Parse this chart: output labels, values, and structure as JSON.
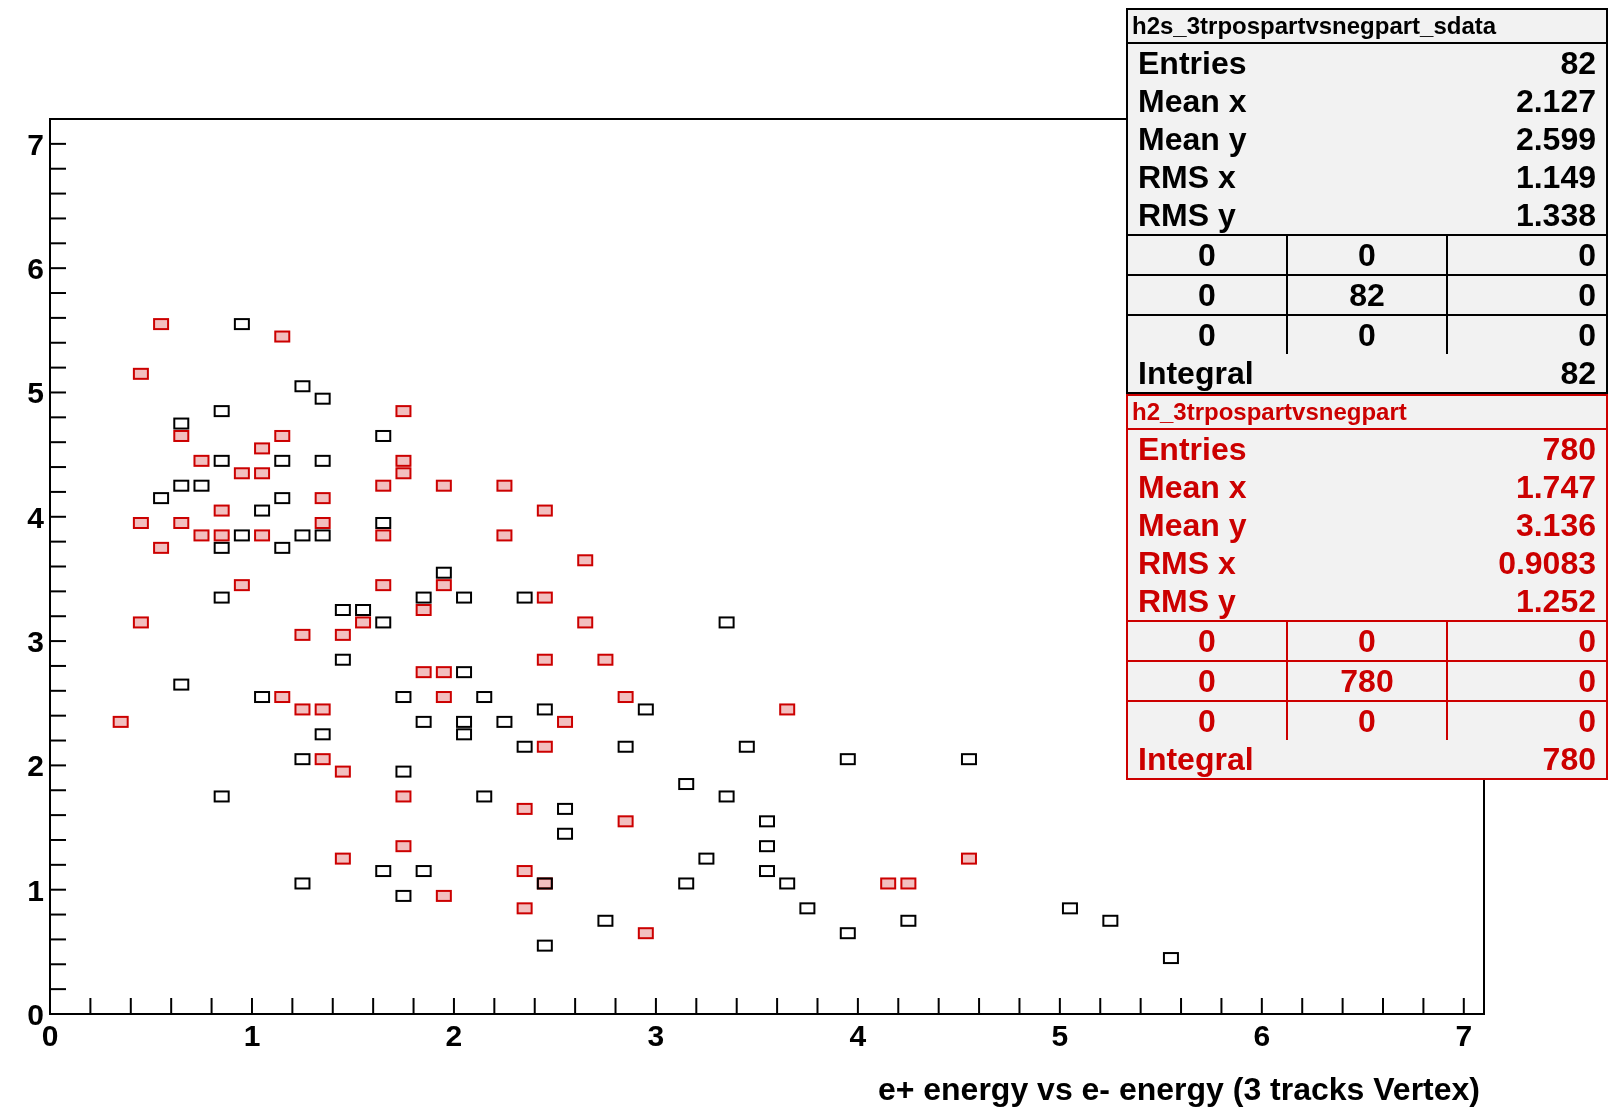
{
  "chart_data": {
    "type": "scatter",
    "xlabel": "e+ energy vs e- energy (3 tracks Vertex)",
    "marker": "square",
    "legend": "top right",
    "xlim": [
      0,
      7.1
    ],
    "ylim": [
      0,
      7.2
    ],
    "xticks": [
      0,
      {
        "value": 0.2,
        "label": null
      },
      {
        "value": 0.4,
        "label": null
      },
      {
        "value": 0.6,
        "label": null
      },
      {
        "value": 0.8,
        "label": null
      },
      1,
      {
        "value": 1.2,
        "label": null
      },
      {
        "value": 1.4,
        "label": null
      },
      {
        "value": 1.6,
        "label": null
      },
      {
        "value": 1.8,
        "label": null
      },
      2,
      {
        "value": 2.2,
        "label": null
      },
      {
        "value": 2.4,
        "label": null
      },
      {
        "value": 2.6,
        "label": null
      },
      {
        "value": 2.8,
        "label": null
      },
      3,
      {
        "value": 3.2,
        "label": null
      },
      {
        "value": 3.4,
        "label": null
      },
      {
        "value": 3.6,
        "label": null
      },
      {
        "value": 3.8,
        "label": null
      },
      4,
      {
        "value": 4.2,
        "label": null
      },
      {
        "value": 4.4,
        "label": null
      },
      {
        "value": 4.6,
        "label": null
      },
      {
        "value": 4.8,
        "label": null
      },
      5,
      {
        "value": 5.2,
        "label": null
      },
      {
        "value": 5.4,
        "label": null
      },
      {
        "value": 5.6,
        "label": null
      },
      {
        "value": 5.8,
        "label": null
      },
      6,
      {
        "value": 6.2,
        "label": null
      },
      {
        "value": 6.4,
        "label": null
      },
      {
        "value": 6.6,
        "label": null
      },
      {
        "value": 6.8,
        "label": null
      },
      7
    ],
    "yticks": [
      0,
      {
        "value": 0.2,
        "label": null
      },
      {
        "value": 0.4,
        "label": null
      },
      {
        "value": 0.6,
        "label": null
      },
      {
        "value": 0.8,
        "label": null
      },
      1,
      {
        "value": 1.2,
        "label": null
      },
      {
        "value": 1.4,
        "label": null
      },
      {
        "value": 1.6,
        "label": null
      },
      {
        "value": 1.8,
        "label": null
      },
      2,
      {
        "value": 2.2,
        "label": null
      },
      {
        "value": 2.4,
        "label": null
      },
      {
        "value": 2.6,
        "label": null
      },
      {
        "value": 2.8,
        "label": null
      },
      3,
      {
        "value": 3.2,
        "label": null
      },
      {
        "value": 3.4,
        "label": null
      },
      {
        "value": 3.6,
        "label": null
      },
      {
        "value": 3.8,
        "label": null
      },
      4,
      {
        "value": 4.2,
        "label": null
      },
      {
        "value": 4.4,
        "label": null
      },
      {
        "value": 4.6,
        "label": null
      },
      {
        "value": 4.8,
        "label": null
      },
      5,
      {
        "value": 5.2,
        "label": null
      },
      {
        "value": 5.4,
        "label": null
      },
      {
        "value": 5.6,
        "label": null
      },
      {
        "value": 5.8,
        "label": null
      },
      6,
      {
        "value": 6.2,
        "label": null
      },
      {
        "value": 6.4,
        "label": null
      },
      {
        "value": 6.6,
        "label": null
      },
      {
        "value": 6.8,
        "label": null
      },
      7
    ],
    "series": [
      {
        "name": "h2s_3trpospartvsnegpart_sdata",
        "color": "#000000",
        "x": [
          0.95,
          1.25,
          1.35,
          0.85,
          0.65,
          1.65,
          0.85,
          1.15,
          1.35,
          0.65,
          0.75,
          0.55,
          1.15,
          1.05,
          1.65,
          0.95,
          1.25,
          1.35,
          1.15,
          0.85,
          1.95,
          0.85,
          1.85,
          2.05,
          2.35,
          1.45,
          1.55,
          1.65,
          3.35,
          1.45,
          2.05,
          0.65,
          1.05,
          1.75,
          2.15,
          2.45,
          2.95,
          1.85,
          2.05,
          2.25,
          1.35,
          2.05,
          2.35,
          2.85,
          3.45,
          1.25,
          3.95,
          4.55,
          1.75,
          3.15,
          0.85,
          2.15,
          3.35,
          2.55,
          3.55,
          2.55,
          3.55,
          3.25,
          1.65,
          1.85,
          3.55,
          1.25,
          2.45,
          3.15,
          3.65,
          1.75,
          3.75,
          5.05,
          2.75,
          4.25,
          5.25,
          3.95,
          2.45,
          5.55
        ],
        "values": [
          5.55,
          5.05,
          4.95,
          4.85,
          4.75,
          4.65,
          4.45,
          4.45,
          4.45,
          4.25,
          4.25,
          4.15,
          4.15,
          4.05,
          3.95,
          3.85,
          3.85,
          3.85,
          3.75,
          3.75,
          3.55,
          3.35,
          3.35,
          3.35,
          3.35,
          3.25,
          3.25,
          3.15,
          3.15,
          2.85,
          2.75,
          2.65,
          2.55,
          2.55,
          2.55,
          2.45,
          2.45,
          2.35,
          2.35,
          2.35,
          2.25,
          2.25,
          2.15,
          2.15,
          2.15,
          2.05,
          2.05,
          2.05,
          1.95,
          1.85,
          1.75,
          1.75,
          1.75,
          1.65,
          1.55,
          1.45,
          1.35,
          1.25,
          1.15,
          1.15,
          1.15,
          1.05,
          1.05,
          1.05,
          1.05,
          0.95,
          0.85,
          0.85,
          0.75,
          0.75,
          0.75,
          0.65,
          0.55,
          0.45
        ]
      },
      {
        "name": "h2_3trpospartvsnegpart",
        "color": "#cc0000",
        "x": [
          0.55,
          1.15,
          0.45,
          1.75,
          1.15,
          0.65,
          0.75,
          1.05,
          1.05,
          0.95,
          1.75,
          1.75,
          1.65,
          1.95,
          2.25,
          1.35,
          0.85,
          2.45,
          0.45,
          0.65,
          1.35,
          0.75,
          0.85,
          1.05,
          1.65,
          2.25,
          0.55,
          2.65,
          0.95,
          1.65,
          1.95,
          1.85,
          2.45,
          0.45,
          1.55,
          2.65,
          1.25,
          1.45,
          2.45,
          2.75,
          1.85,
          1.95,
          1.15,
          1.95,
          2.85,
          3.65,
          1.25,
          1.35,
          0.35,
          2.55,
          2.45,
          1.35,
          1.45,
          1.75,
          2.35,
          2.85,
          1.75,
          1.45,
          4.55,
          2.35,
          2.45,
          4.15,
          4.25,
          1.95,
          2.35,
          2.95
        ],
        "values": [
          5.55,
          5.45,
          5.15,
          4.85,
          4.65,
          4.65,
          4.45,
          4.55,
          4.35,
          4.35,
          4.45,
          4.35,
          4.25,
          4.25,
          4.25,
          4.15,
          4.05,
          4.05,
          3.95,
          3.95,
          3.95,
          3.85,
          3.85,
          3.85,
          3.85,
          3.85,
          3.75,
          3.65,
          3.45,
          3.45,
          3.45,
          3.25,
          3.35,
          3.15,
          3.15,
          3.15,
          3.05,
          3.05,
          2.85,
          2.85,
          2.75,
          2.75,
          2.55,
          2.55,
          2.55,
          2.45,
          2.45,
          2.45,
          2.35,
          2.35,
          2.15,
          2.05,
          1.95,
          1.75,
          1.65,
          1.55,
          1.35,
          1.25,
          1.25,
          1.15,
          1.05,
          1.05,
          1.05,
          0.95,
          0.85,
          0.65
        ]
      }
    ],
    "annotations": [
      "Entries 82",
      "Mean x 2.127",
      "Mean y 2.599",
      "RMS x 1.149",
      "RMS y 1.338",
      "0 0 0",
      "0 82 0",
      "0 0 0",
      "Integral 82",
      "Entries 780",
      "Mean x 1.747",
      "Mean y 3.136",
      "RMS x 0.9083",
      "RMS y 1.252",
      "0 0 0",
      "0 780 0",
      "0 0 0",
      "Integral 780"
    ]
  }
}
